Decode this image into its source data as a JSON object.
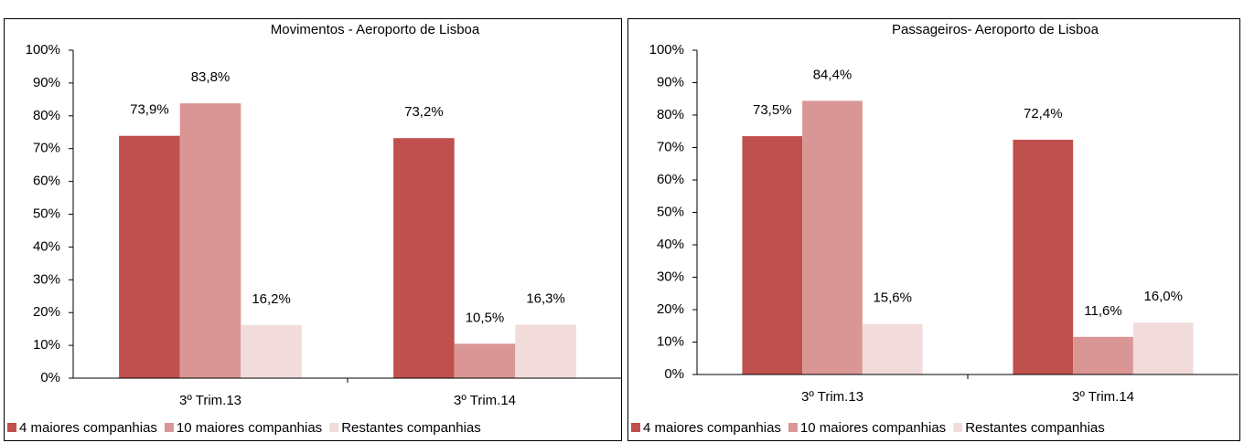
{
  "chart_data": [
    {
      "type": "bar",
      "title": "Movimentos - Aeroporto de Lisboa",
      "categories": [
        "3º Trim.13",
        "3º Trim.14"
      ],
      "series": [
        {
          "name": "4 maiores companhias",
          "color": "#c0504d",
          "values": [
            73.9,
            73.2
          ],
          "value_labels": [
            "73,9%",
            "73,2%"
          ]
        },
        {
          "name": "10 maiores companhias",
          "color": "#d99694",
          "values": [
            83.8,
            10.5
          ],
          "value_labels": [
            "83,8%",
            "10,5%"
          ]
        },
        {
          "name": "Restantes companhias",
          "color": "#f2dcdb",
          "values": [
            16.2,
            16.3
          ],
          "value_labels": [
            "16,2%",
            "16,3%"
          ]
        }
      ],
      "ylim": [
        0,
        100
      ],
      "yticks": [
        {
          "value": 0,
          "label": "0%"
        },
        {
          "value": 10,
          "label": "10%"
        },
        {
          "value": 20,
          "label": "20%"
        },
        {
          "value": 30,
          "label": "30%"
        },
        {
          "value": 40,
          "label": "40%"
        },
        {
          "value": 50,
          "label": "50%"
        },
        {
          "value": 60,
          "label": "60%"
        },
        {
          "value": 70,
          "label": "70%"
        },
        {
          "value": 80,
          "label": "80%"
        },
        {
          "value": 90,
          "label": "90%"
        },
        {
          "value": 100,
          "label": "100%"
        }
      ],
      "legend": "bottom"
    },
    {
      "type": "bar",
      "title": "Passageiros- Aeroporto de Lisboa",
      "categories": [
        "3º Trim.13",
        "3º Trim.14"
      ],
      "series": [
        {
          "name": "4 maiores companhias",
          "color": "#c0504d",
          "values": [
            73.5,
            72.4
          ],
          "value_labels": [
            "73,5%",
            "72,4%"
          ]
        },
        {
          "name": "10 maiores companhias",
          "color": "#d99694",
          "values": [
            84.4,
            11.6
          ],
          "value_labels": [
            "84,4%",
            "11,6%"
          ]
        },
        {
          "name": "Restantes companhias",
          "color": "#f2dcdb",
          "values": [
            15.6,
            16.0
          ],
          "value_labels": [
            "15,6%",
            "16,0%"
          ]
        }
      ],
      "ylim": [
        0,
        100
      ],
      "yticks": [
        {
          "value": 0,
          "label": "0%"
        },
        {
          "value": 10,
          "label": "10%"
        },
        {
          "value": 20,
          "label": "20%"
        },
        {
          "value": 30,
          "label": "30%"
        },
        {
          "value": 40,
          "label": "40%"
        },
        {
          "value": 50,
          "label": "50%"
        },
        {
          "value": 60,
          "label": "60%"
        },
        {
          "value": 70,
          "label": "70%"
        },
        {
          "value": 80,
          "label": "80%"
        },
        {
          "value": 90,
          "label": "90%"
        },
        {
          "value": 100,
          "label": "100%"
        }
      ],
      "legend": "bottom"
    }
  ]
}
